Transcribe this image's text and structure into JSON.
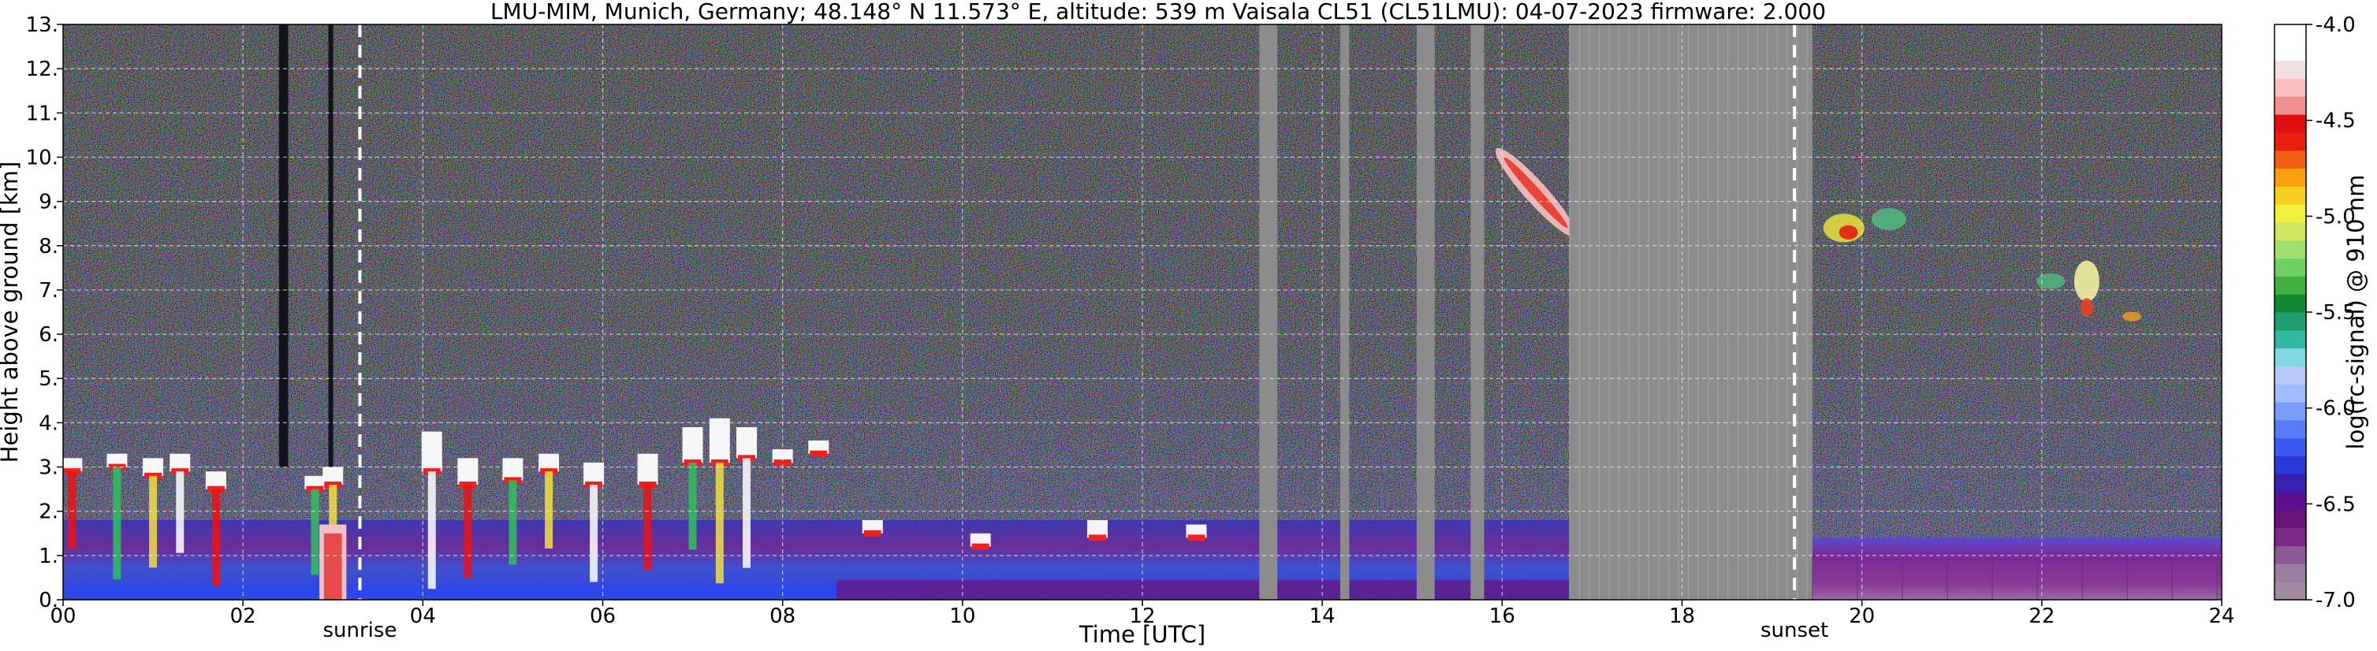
{
  "chart_data": {
    "type": "heatmap",
    "title": "LMU-MIM, Munich, Germany; 48.148° N 11.573° E, altitude: 539 m    Vaisala CL51 (CL51LMU): 04-07-2023    firmware: 2.000",
    "xlabel": "Time [UTC]",
    "ylabel": "Height above ground [km]",
    "xlim": [
      0,
      24
    ],
    "ylim": [
      0,
      13
    ],
    "x_ticks": [
      0,
      2,
      4,
      6,
      8,
      10,
      12,
      14,
      16,
      18,
      20,
      22,
      24
    ],
    "x_tick_labels": [
      "00",
      "02",
      "04",
      "06",
      "08",
      "10",
      "12",
      "14",
      "16",
      "18",
      "20",
      "22",
      "24"
    ],
    "y_ticks": [
      0,
      1,
      2,
      3,
      4,
      5,
      6,
      7,
      8,
      9,
      10,
      11,
      12,
      13
    ],
    "y_tick_labels": [
      "0.",
      "1.",
      "2.",
      "3.",
      "4.",
      "5.",
      "6.",
      "7.",
      "8.",
      "9.",
      "10.",
      "11.",
      "12.",
      "13."
    ],
    "grid": true,
    "colorbar": {
      "label": "log(rc-signal) @ 910 nm",
      "range": [
        -7.0,
        -4.0
      ],
      "ticks": [
        -7.0,
        -6.5,
        -6.0,
        -5.5,
        -5.0,
        -4.5,
        -4.0
      ],
      "tick_labels": [
        "-7.0",
        "-6.5",
        "-6.0",
        "-5.5",
        "-5.0",
        "-4.5",
        "-4.0"
      ],
      "colors": [
        "#a08aa2",
        "#9a7ea0",
        "#8c5a92",
        "#7a2a86",
        "#6a1478",
        "#5a1090",
        "#3a20b0",
        "#2a3ad8",
        "#3a5af0",
        "#5a7af8",
        "#7a9cfa",
        "#a0bcfc",
        "#b8c8f8",
        "#80d8e0",
        "#30b8a0",
        "#20a070",
        "#108a30",
        "#40b040",
        "#70d060",
        "#a0e070",
        "#d0e860",
        "#f0f040",
        "#f8d020",
        "#f8a010",
        "#f06010",
        "#e82010",
        "#e01010",
        "#f09090",
        "#f8c0c0",
        "#f0e0e0",
        "#ffffff",
        "#ffffff"
      ]
    },
    "events": [
      {
        "label": "sunrise",
        "time": 3.3
      },
      {
        "label": "sunset",
        "time": 19.25
      }
    ],
    "missing_data": [
      [
        13.3,
        13.5
      ],
      [
        14.2,
        14.3
      ],
      [
        15.05,
        15.25
      ],
      [
        15.65,
        15.8
      ],
      [
        16.75,
        19.45
      ]
    ],
    "features": [
      {
        "kind": "boundary layer aerosol",
        "t_start": 0.0,
        "t_end": 19.45,
        "h_bottom": 0.0,
        "h_top": 1.8
      },
      {
        "kind": "boundary layer aerosol",
        "t_start": 19.45,
        "t_end": 24.0,
        "h_bottom": 0.0,
        "h_top": 1.4
      },
      {
        "kind": "low clouds",
        "t_start": 0.0,
        "t_end": 8.6,
        "h_bottom": 0.0,
        "h_top": 4.3
      },
      {
        "kind": "cirrus",
        "t_start": 16.0,
        "t_end": 16.75,
        "h_bottom": 8.0,
        "h_top": 10.4
      },
      {
        "kind": "cirrus",
        "t_start": 19.6,
        "t_end": 20.6,
        "h_bottom": 7.6,
        "h_top": 9.0
      },
      {
        "kind": "cirrus",
        "t_start": 21.9,
        "t_end": 23.3,
        "h_bottom": 6.0,
        "h_top": 7.9
      }
    ]
  }
}
